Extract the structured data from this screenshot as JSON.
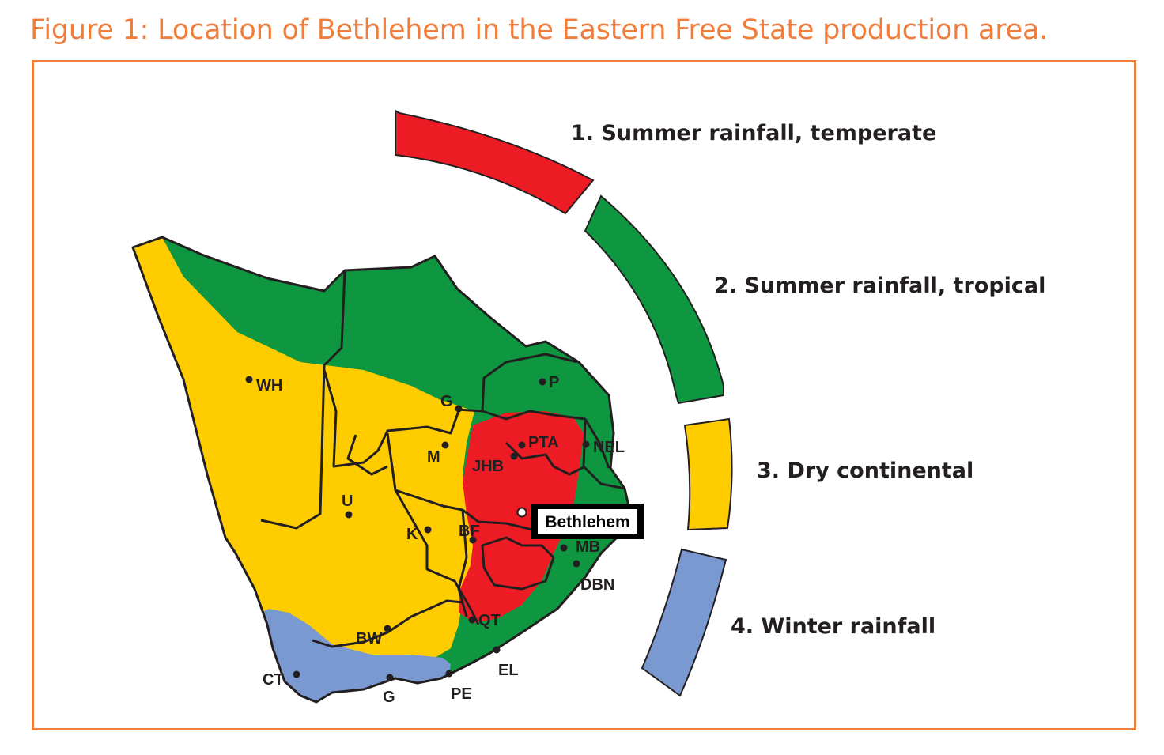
{
  "figure": {
    "title": "Figure 1: Location of Bethlehem in the Eastern Free State production area."
  },
  "colors": {
    "frame": "#ef7d3c",
    "summer_rainfall_temperate": "#ed1c24",
    "summer_rainfall_tropical": "#0f9640",
    "dry_continental": "#ffcc00",
    "winter_rainfall": "#7a99d1",
    "outline": "#231f20"
  },
  "legend": [
    {
      "label": "1. Summer rainfall, temperate",
      "color": "#ed1c24"
    },
    {
      "label": "2. Summer rainfall, tropical",
      "color": "#0f9640"
    },
    {
      "label": "3. Dry continental",
      "color": "#ffcc00"
    },
    {
      "label": "4. Winter rainfall",
      "color": "#7a99d1"
    }
  ],
  "cities": {
    "wh": "WH",
    "g_north": "G",
    "p": "P",
    "pta": "PTA",
    "nel": "NEL",
    "m": "M",
    "jhb": "JHB",
    "u": "U",
    "k": "K",
    "bf": "BF",
    "mb": "MB",
    "dbn": "DBN",
    "qt": "QT",
    "bw": "BW",
    "ct": "CT",
    "g_south": "G",
    "pe": "PE",
    "el": "EL"
  },
  "callout": {
    "label": "Bethlehem"
  }
}
